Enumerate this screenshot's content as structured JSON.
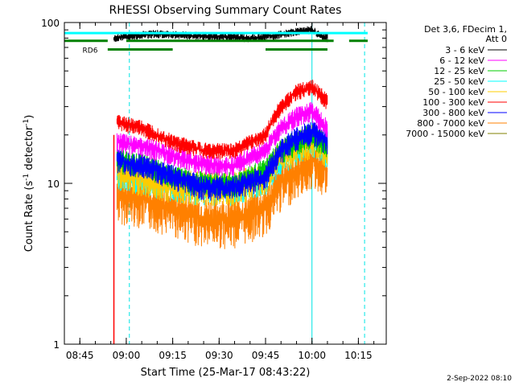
{
  "chart_data": {
    "type": "line",
    "title": "RHESSI Observing Summary Count Rates",
    "xlabel": "Start Time (25-Mar-17 08:43:22)",
    "ylabel_main": "Count Rate (s",
    "ylabel_sup": "-1",
    "ylabel_mid": " detector",
    "ylabel_end": ")",
    "y_scale": "log",
    "ylim": [
      1,
      100
    ],
    "xlim_minutes": [
      "08:40",
      "10:24"
    ],
    "x_ticks": [
      "08:45",
      "09:00",
      "09:15",
      "09:30",
      "09:45",
      "10:00",
      "10:15"
    ],
    "y_ticks": [
      "1",
      "10",
      "100"
    ],
    "legend_header": [
      "Det 3,6, FDecim 1,",
      "Att 0"
    ],
    "legend_position": "right",
    "footer_date": "2-Sep-2022 08:10",
    "flag_label": "RD6",
    "series": [
      {
        "name": "3 - 6 keV",
        "color": "#000000",
        "x": [
          "08:56",
          "09:00",
          "09:10",
          "09:20",
          "09:30",
          "09:40",
          "09:50",
          "09:55",
          "10:00",
          "10:03",
          "10:05"
        ],
        "y": [
          80,
          82,
          85,
          83,
          82,
          80,
          84,
          88,
          90,
          82,
          80
        ]
      },
      {
        "name": "6 - 12 keV",
        "color": "#ff00ff",
        "x": [
          "08:57",
          "09:05",
          "09:15",
          "09:25",
          "09:35",
          "09:45",
          "09:50",
          "09:55",
          "10:00",
          "10:05"
        ],
        "y": [
          18,
          17,
          15,
          13,
          13,
          16,
          22,
          26,
          28,
          22
        ]
      },
      {
        "name": "12 - 25 keV",
        "color": "#00cc00",
        "x": [
          "08:57",
          "09:05",
          "09:15",
          "09:25",
          "09:35",
          "09:45",
          "09:50",
          "09:55",
          "10:00",
          "10:05"
        ],
        "y": [
          14,
          13,
          11,
          10,
          10,
          12,
          16,
          18,
          20,
          17
        ]
      },
      {
        "name": "25 - 50 keV",
        "color": "#00ffff",
        "x": [
          "08:57",
          "09:05",
          "09:15",
          "09:25",
          "09:35",
          "09:45",
          "09:50",
          "09:55",
          "10:00",
          "10:05"
        ],
        "y": [
          11,
          10.5,
          9.5,
          9,
          9,
          10.5,
          14,
          16,
          18,
          15
        ]
      },
      {
        "name": "50 - 100 keV",
        "color": "#ffcc00",
        "x": [
          "08:57",
          "09:05",
          "09:15",
          "09:25",
          "09:35",
          "09:45",
          "09:50",
          "09:55",
          "10:00",
          "10:05"
        ],
        "y": [
          12,
          11,
          10,
          9.5,
          9.5,
          11,
          15,
          17,
          19,
          16
        ]
      },
      {
        "name": "100 - 300 keV",
        "color": "#ff0000",
        "x": [
          "08:57",
          "09:05",
          "09:15",
          "09:25",
          "09:35",
          "09:45",
          "09:50",
          "09:55",
          "10:00",
          "10:05"
        ],
        "y": [
          24,
          22,
          18,
          16,
          16,
          20,
          30,
          37,
          40,
          32
        ]
      },
      {
        "name": "300 - 800 keV",
        "color": "#0000ff",
        "x": [
          "08:57",
          "09:05",
          "09:15",
          "09:25",
          "09:35",
          "09:45",
          "09:50",
          "09:55",
          "10:00",
          "10:05"
        ],
        "y": [
          14,
          13,
          11,
          9.5,
          9.5,
          11,
          16,
          19,
          21,
          18
        ]
      },
      {
        "name": "800 - 7000 keV",
        "color": "#ff8000",
        "x": [
          "08:57",
          "09:05",
          "09:15",
          "09:25",
          "09:35",
          "09:45",
          "09:50",
          "09:55",
          "10:00",
          "10:05"
        ],
        "y": [
          8.5,
          8,
          7,
          6,
          6,
          7,
          10,
          12,
          14,
          12
        ]
      },
      {
        "name": "7000 - 15000 keV",
        "color": "#808000",
        "x": [],
        "y": []
      }
    ],
    "vertical_markers": {
      "solid_cyan": [
        "08:40",
        "10:00"
      ],
      "dashed_cyan": [
        "09:01",
        "10:17"
      ]
    },
    "flag_bars": [
      {
        "color": "#00ffff",
        "segments": [
          [
            "08:40",
            "10:18"
          ]
        ],
        "y": 86
      },
      {
        "color": "#008000",
        "segments": [
          [
            "08:40",
            "08:54"
          ],
          [
            "09:00",
            "10:07"
          ],
          [
            "10:12",
            "10:18"
          ]
        ],
        "y": 77
      },
      {
        "color": "#008000",
        "segments": [
          [
            "08:54",
            "09:15"
          ],
          [
            "09:45",
            "10:05"
          ]
        ],
        "y": 68
      }
    ]
  }
}
